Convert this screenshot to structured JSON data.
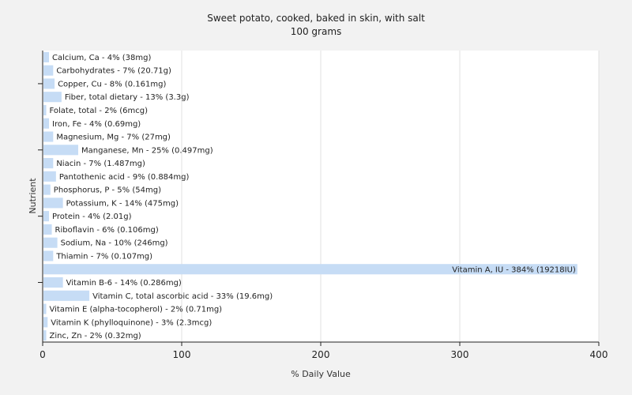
{
  "chart_data": {
    "type": "bar",
    "orientation": "horizontal",
    "title": "Sweet potato, cooked, baked in skin, with salt",
    "subtitle": "100 grams",
    "xlabel": "% Daily Value",
    "ylabel": "Nutrient",
    "xlim": [
      0,
      400
    ],
    "xticks": [
      "0",
      "100",
      "200",
      "300",
      "400"
    ],
    "grid": true,
    "bar_color": "#c6dcf5",
    "categories": [
      "Calcium, Ca - 4% (38mg)",
      "Carbohydrates - 7% (20.71g)",
      "Copper, Cu - 8% (0.161mg)",
      "Fiber, total dietary - 13% (3.3g)",
      "Folate, total - 2% (6mcg)",
      "Iron, Fe - 4% (0.69mg)",
      "Magnesium, Mg - 7% (27mg)",
      "Manganese, Mn - 25% (0.497mg)",
      "Niacin - 7% (1.487mg)",
      "Pantothenic acid - 9% (0.884mg)",
      "Phosphorus, P - 5% (54mg)",
      "Potassium, K - 14% (475mg)",
      "Protein - 4% (2.01g)",
      "Riboflavin - 6% (0.106mg)",
      "Sodium, Na - 10% (246mg)",
      "Thiamin - 7% (0.107mg)",
      "Vitamin A, IU - 384% (19218IU)",
      "Vitamin B-6 - 14% (0.286mg)",
      "Vitamin C, total ascorbic acid - 33% (19.6mg)",
      "Vitamin E (alpha-tocopherol) - 2% (0.71mg)",
      "Vitamin K (phylloquinone) - 3% (2.3mcg)",
      "Zinc, Zn - 2% (0.32mg)"
    ],
    "values": [
      4,
      7,
      8,
      13,
      2,
      4,
      7,
      25,
      7,
      9,
      5,
      14,
      4,
      6,
      10,
      7,
      384,
      14,
      33,
      2,
      3,
      2
    ]
  }
}
